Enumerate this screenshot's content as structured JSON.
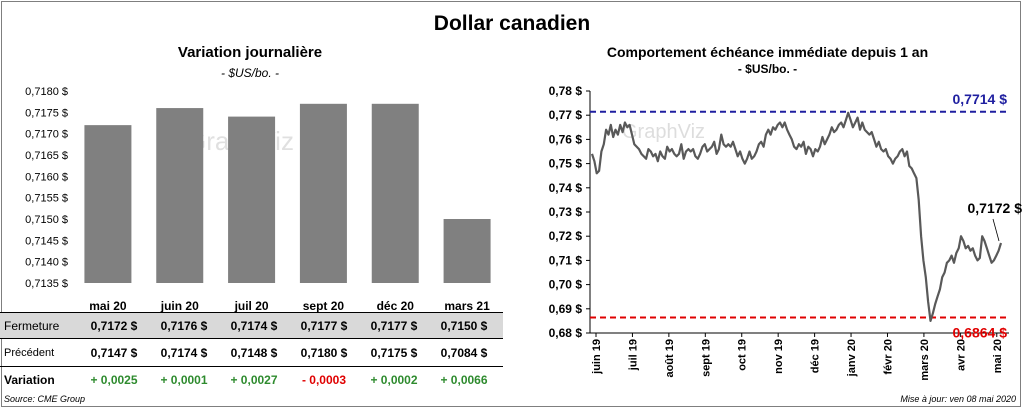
{
  "title": "Dollar canadien",
  "left": {
    "title": "Variation  journalière",
    "subtitle": "- $US/bo. -",
    "watermark": "GraphViz",
    "bar_color": "#808080",
    "table": {
      "rows": [
        {
          "label": "Fermeture",
          "values": [
            "0,7172  $",
            "0,7176  $",
            "0,7174  $",
            "0,7177  $",
            "0,7177  $",
            "0,7150  $"
          ]
        },
        {
          "label": "Précédent",
          "values": [
            "0,7147  $",
            "0,7174  $",
            "0,7148  $",
            "0,7180  $",
            "0,7175  $",
            "0,7084  $"
          ]
        },
        {
          "label": "Variation",
          "values": [
            "+ 0,0025",
            "+ 0,0001",
            "+ 0,0027",
            "- 0,0003",
            "+ 0,0002",
            "+ 0,0066"
          ]
        }
      ]
    }
  },
  "right": {
    "title": "Comportement échéance immédiate depuis 1 an",
    "subtitle": "- $US/bo. -",
    "watermark": "GraphViz",
    "line_color": "#595959",
    "high_color": "#1f1fa0",
    "low_color": "#e00000",
    "high_label": "0,7714  $",
    "low_label": "0,6864  $",
    "last_label": "0,7172 $"
  },
  "footer": {
    "source": "Source: CME Group",
    "updated": "Mise à jour: ven 08 mai 2020"
  },
  "chart_data": [
    {
      "type": "bar",
      "categories": [
        "mai 20",
        "juin 20",
        "juil 20",
        "sept 20",
        "déc 20",
        "mars 21"
      ],
      "values": [
        0.7172,
        0.7176,
        0.7174,
        0.7177,
        0.7177,
        0.715
      ],
      "title": "Variation  journalière",
      "subtitle": "- $US/bo. -",
      "ylim": [
        0.7135,
        0.718
      ],
      "yticks": [
        "0,7135 $",
        "0,7140 $",
        "0,7145 $",
        "0,7150 $",
        "0,7155 $",
        "0,7160 $",
        "0,7165 $",
        "0,7170 $",
        "0,7175 $",
        "0,7180 $"
      ],
      "grid": false
    },
    {
      "type": "line",
      "title": "Comportement échéance immédiate depuis 1 an",
      "subtitle": "- $US/bo. -",
      "ylim": [
        0.68,
        0.78
      ],
      "yticks": [
        "0,68 $",
        "0,69 $",
        "0,70 $",
        "0,71 $",
        "0,72 $",
        "0,73 $",
        "0,74 $",
        "0,75 $",
        "0,76 $",
        "0,77 $",
        "0,78 $"
      ],
      "xticks": [
        "juin 19",
        "juil 19",
        "août 19",
        "sept 19",
        "oct 19",
        "nov 19",
        "déc 19",
        "janv 20",
        "févr 20",
        "mars 20",
        "avr 20",
        "mai 20"
      ],
      "reference_lines": [
        {
          "value": 0.7714,
          "label": "0,7714  $",
          "style": "dashed"
        },
        {
          "value": 0.6864,
          "label": "0,6864  $",
          "style": "dashed"
        }
      ],
      "series": [
        {
          "values": [
            0.754,
            0.751,
            0.746,
            0.747,
            0.755,
            0.758,
            0.764,
            0.762,
            0.766,
            0.761,
            0.764,
            0.762,
            0.766,
            0.763,
            0.767,
            0.765,
            0.766,
            0.762,
            0.758,
            0.757,
            0.756,
            0.754,
            0.753,
            0.752,
            0.756,
            0.755,
            0.753,
            0.754,
            0.751,
            0.755,
            0.753,
            0.752,
            0.757,
            0.755,
            0.756,
            0.754,
            0.753,
            0.754,
            0.758,
            0.752,
            0.755,
            0.756,
            0.755,
            0.756,
            0.753,
            0.752,
            0.754,
            0.757,
            0.758,
            0.755,
            0.756,
            0.757,
            0.759,
            0.754,
            0.756,
            0.762,
            0.758,
            0.757,
            0.758,
            0.757,
            0.759,
            0.756,
            0.753,
            0.755,
            0.752,
            0.75,
            0.752,
            0.755,
            0.752,
            0.753,
            0.755,
            0.758,
            0.759,
            0.757,
            0.762,
            0.764,
            0.762,
            0.765,
            0.764,
            0.766,
            0.767,
            0.765,
            0.767,
            0.764,
            0.762,
            0.76,
            0.757,
            0.756,
            0.758,
            0.757,
            0.759,
            0.754,
            0.757,
            0.756,
            0.753,
            0.756,
            0.755,
            0.757,
            0.761,
            0.758,
            0.76,
            0.762,
            0.765,
            0.763,
            0.764,
            0.766,
            0.767,
            0.765,
            0.768,
            0.771,
            0.768,
            0.765,
            0.767,
            0.769,
            0.764,
            0.767,
            0.764,
            0.763,
            0.762,
            0.763,
            0.76,
            0.757,
            0.759,
            0.756,
            0.755,
            0.756,
            0.753,
            0.752,
            0.75,
            0.752,
            0.753,
            0.755,
            0.756,
            0.753,
            0.755,
            0.749,
            0.748,
            0.746,
            0.744,
            0.735,
            0.72,
            0.71,
            0.703,
            0.693,
            0.685,
            0.688,
            0.692,
            0.695,
            0.698,
            0.703,
            0.705,
            0.709,
            0.71,
            0.712,
            0.709,
            0.713,
            0.715,
            0.72,
            0.718,
            0.715,
            0.716,
            0.714,
            0.715,
            0.712,
            0.71,
            0.711,
            0.72,
            0.718,
            0.715,
            0.712,
            0.709,
            0.71,
            0.712,
            0.714,
            0.7172
          ]
        }
      ]
    }
  ]
}
